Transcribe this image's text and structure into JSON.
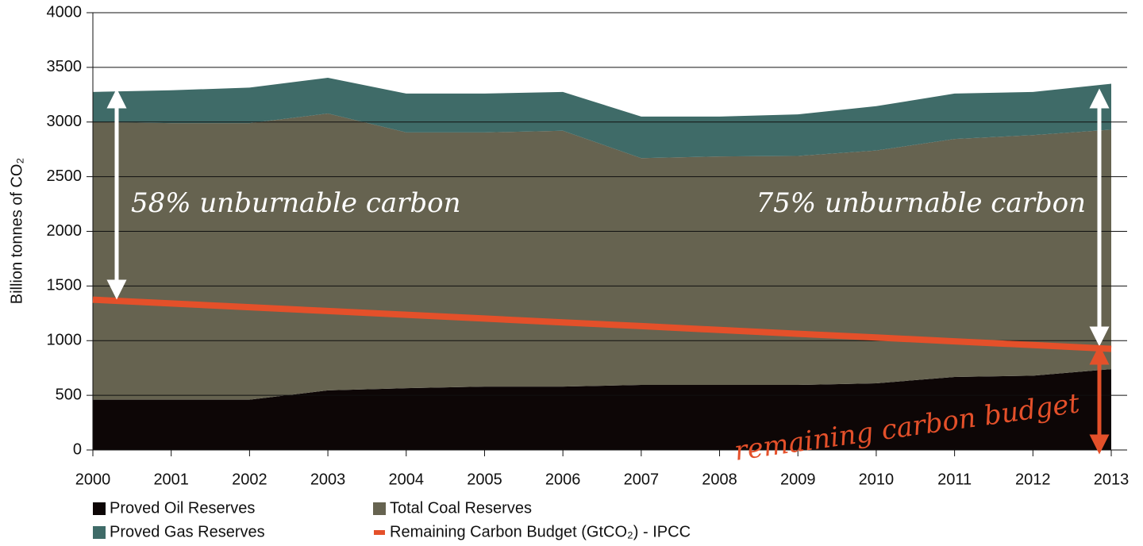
{
  "chart_data": {
    "type": "area",
    "y_label": "Billion tonnes of CO₂",
    "x": [
      2000,
      2001,
      2002,
      2003,
      2004,
      2005,
      2006,
      2007,
      2008,
      2009,
      2010,
      2011,
      2012,
      2013
    ],
    "xlim": [
      2000,
      2013
    ],
    "xticks": [
      2000,
      2001,
      2002,
      2003,
      2004,
      2005,
      2006,
      2007,
      2008,
      2009,
      2010,
      2011,
      2012,
      2013
    ],
    "ylim": [
      0,
      4000
    ],
    "yticks": [
      0,
      500,
      1000,
      1500,
      2000,
      2500,
      3000,
      3500,
      4000
    ],
    "grid": true,
    "stacked": true,
    "series": [
      {
        "name": "Proved Oil Reserves",
        "color": "#0d0606",
        "values": [
          460,
          460,
          460,
          545,
          565,
          580,
          580,
          595,
          595,
          595,
          610,
          668,
          680,
          740
        ]
      },
      {
        "name": "Total Coal Reserves",
        "color": "#666350",
        "values": [
          2540,
          2530,
          2530,
          2533,
          2340,
          2325,
          2340,
          2075,
          2090,
          2095,
          2130,
          2177,
          2200,
          2190
        ]
      },
      {
        "name": "Proved Gas Reserves",
        "color": "#3f6b68",
        "values": [
          275,
          300,
          325,
          327,
          355,
          355,
          355,
          380,
          365,
          380,
          405,
          415,
          395,
          420
        ]
      }
    ],
    "line_series": {
      "name": "Remaining Carbon Budget (GtCO₂) - IPCC",
      "color": "#e4502a",
      "values": [
        1375,
        1340,
        1306,
        1271,
        1237,
        1202,
        1167,
        1133,
        1098,
        1063,
        1029,
        994,
        960,
        925
      ]
    },
    "annotations": [
      "58% unburnable carbon",
      "75% unburnable carbon",
      "remaining carbon budget"
    ]
  }
}
